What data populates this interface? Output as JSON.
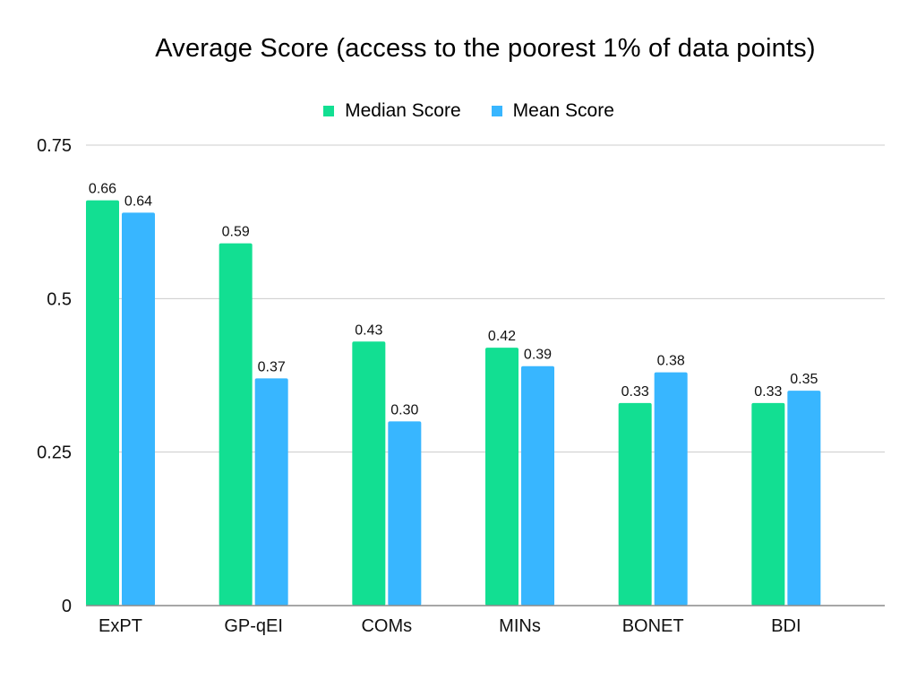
{
  "chart_data": {
    "type": "bar",
    "title": "Average Score (access to the poorest 1% of data points)",
    "categories": [
      "ExPT",
      "GP-qEI",
      "COMs",
      "MINs",
      "BONET",
      "BDI"
    ],
    "series": [
      {
        "name": "Median Score",
        "color": "#12df92",
        "values": [
          0.66,
          0.59,
          0.43,
          0.42,
          0.33,
          0.33
        ],
        "labels": [
          "0.66",
          "0.59",
          "0.43",
          "0.42",
          "0.33",
          "0.33"
        ]
      },
      {
        "name": "Mean Score",
        "color": "#38b6ff",
        "values": [
          0.64,
          0.37,
          0.3,
          0.39,
          0.38,
          0.35
        ],
        "labels": [
          "0.64",
          "0.37",
          "0.30",
          "0.39",
          "0.38",
          "0.35"
        ]
      }
    ],
    "ylim": [
      0,
      0.75
    ],
    "yticks": [
      0,
      0.25,
      0.5,
      0.75
    ],
    "ytick_labels": [
      "0",
      "0.25",
      "0.5",
      "0.75"
    ],
    "xlabel": "",
    "ylabel": "",
    "grid": true,
    "legend_position": "top-center",
    "grid_color": "#cccccc",
    "axis_color": "#8a8a8a"
  }
}
